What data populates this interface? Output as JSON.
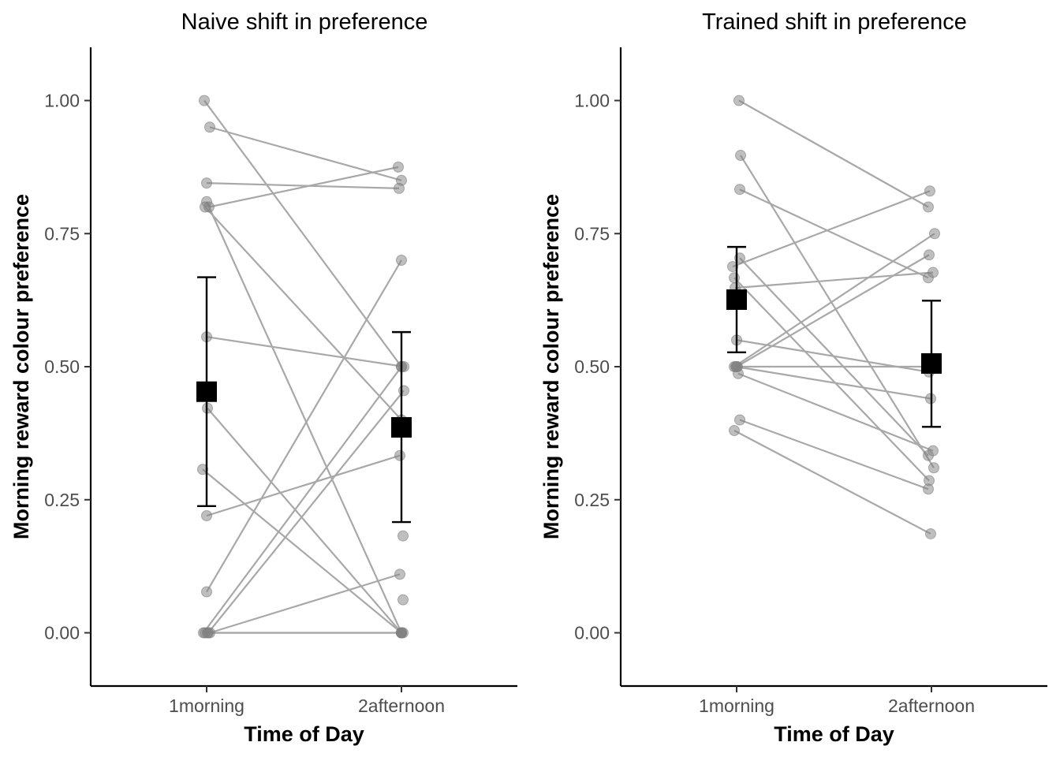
{
  "chart_data": [
    {
      "type": "scatter",
      "title": "Naive shift in preference",
      "xlabel": "Time of Day",
      "ylabel": "Morning reward colour preference",
      "categories": [
        "1morning",
        "2afternoon"
      ],
      "ylim": [
        -0.1,
        1.1
      ],
      "yticks": [
        0.0,
        0.25,
        0.5,
        0.75,
        1.0
      ],
      "ytick_labels": [
        "0.00",
        "0.25",
        "0.50",
        "0.75",
        "1.00"
      ],
      "grid": false,
      "pairs": [
        [
          1.0,
          0.5
        ],
        [
          0.95,
          0.85
        ],
        [
          0.845,
          0.835
        ],
        [
          0.81,
          0.0
        ],
        [
          0.8,
          0.875
        ],
        [
          0.8,
          0.4
        ],
        [
          0.556,
          0.5
        ],
        [
          0.422,
          0.0
        ],
        [
          0.307,
          0.0
        ],
        [
          0.22,
          0.333
        ],
        [
          0.077,
          0.7
        ],
        [
          0.0,
          0.5
        ],
        [
          0.0,
          0.455
        ],
        [
          0.0,
          0.11
        ],
        [
          0.0,
          0.0
        ],
        [
          0.0,
          0.0
        ]
      ],
      "extra_points": [
        {
          "category": "2afternoon",
          "value": 0.182
        },
        {
          "category": "2afternoon",
          "value": 0.062
        }
      ],
      "means": [
        {
          "category": "1morning",
          "mean": 0.453,
          "lower": 0.238,
          "upper": 0.668
        },
        {
          "category": "2afternoon",
          "mean": 0.386,
          "lower": 0.208,
          "upper": 0.565
        }
      ]
    },
    {
      "type": "scatter",
      "title": "Trained shift in preference",
      "xlabel": "Time of Day",
      "ylabel": "Morning reward colour preference",
      "categories": [
        "1morning",
        "2afternoon"
      ],
      "ylim": [
        -0.1,
        1.1
      ],
      "yticks": [
        0.0,
        0.25,
        0.5,
        0.75,
        1.0
      ],
      "ytick_labels": [
        "0.00",
        "0.25",
        "0.50",
        "0.75",
        "1.00"
      ],
      "grid": false,
      "pairs": [
        [
          1.0,
          0.8
        ],
        [
          0.897,
          0.31
        ],
        [
          0.833,
          0.667
        ],
        [
          0.704,
          0.333
        ],
        [
          0.688,
          0.83
        ],
        [
          0.667,
          0.286
        ],
        [
          0.648,
          0.677
        ],
        [
          0.55,
          0.49
        ],
        [
          0.5,
          0.75
        ],
        [
          0.5,
          0.71
        ],
        [
          0.5,
          0.5
        ],
        [
          0.5,
          0.44
        ],
        [
          0.487,
          0.342
        ],
        [
          0.4,
          0.27
        ],
        [
          0.38,
          0.186
        ]
      ],
      "means": [
        {
          "category": "1morning",
          "mean": 0.626,
          "lower": 0.527,
          "upper": 0.725
        },
        {
          "category": "2afternoon",
          "mean": 0.506,
          "lower": 0.387,
          "upper": 0.624
        }
      ]
    }
  ]
}
